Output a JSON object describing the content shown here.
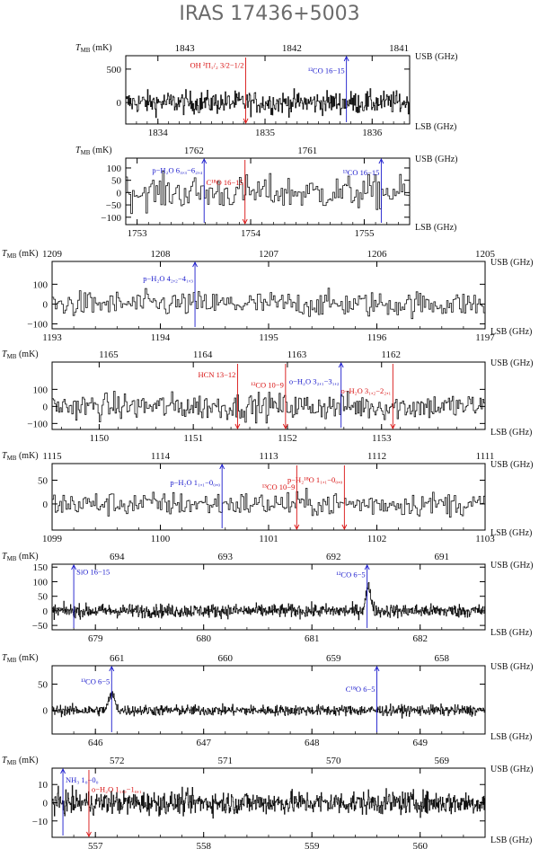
{
  "title": "IRAS 17436+5003",
  "colors": {
    "usb_line": "#1a1acc",
    "lsb_line": "#d81010",
    "spectrum": "#111111",
    "title": "#6b6b6b"
  },
  "axis_text": {
    "tmb": "T",
    "tmb_sub": "MB",
    "unit": "(mK)",
    "usb": "USB (GHz)",
    "lsb": "LSB (GHz)"
  },
  "chart_data": [
    {
      "type": "line",
      "xlabel_bottom": "LSB (GHz)",
      "xlabel_top": "USB (GHz)",
      "ylabel": "T_MB (mK)",
      "lsb_range": [
        1833.7,
        1836.35
      ],
      "usb_range": [
        1843.55,
        1840.9
      ],
      "ylim": [
        -320,
        700
      ],
      "lsb_ticks": [
        "1834",
        "1835",
        "1836"
      ],
      "usb_ticks": [
        "1843",
        "1842",
        "1841"
      ],
      "y_ticks": [
        "500",
        "0"
      ],
      "noise": 120,
      "n": 380,
      "features": [],
      "lines": [
        {
          "label": "OH ²Π₁/₂ 3/2−1/2",
          "x": 1834.82,
          "band": "lsb",
          "y_text": 520
        },
        {
          "label": "¹²CO 16−15",
          "x": 1835.76,
          "band": "usb",
          "y_text": 440
        }
      ]
    },
    {
      "type": "line",
      "lsb_range": [
        1752.9,
        1755.4
      ],
      "usb_range": [
        1762.6,
        1760.1
      ],
      "ylim": [
        -130,
        140
      ],
      "lsb_ticks": [
        "1753",
        "1754",
        "1755"
      ],
      "usb_ticks": [
        "1762",
        "1761"
      ],
      "y_ticks": [
        "100",
        "50",
        "0",
        "−50",
        "−100"
      ],
      "noise": 48,
      "n": 170,
      "features": [],
      "lines": [
        {
          "label": "p−H₂O 6₃,₃−6₂,₄",
          "x": 1753.59,
          "band": "usb",
          "y_text": 80
        },
        {
          "label": "C¹⁸O 16−15",
          "x": 1753.95,
          "band": "lsb",
          "y_text": 30
        },
        {
          "label": "¹³CO 16−15",
          "x": 1755.15,
          "band": "usb",
          "y_text": 70
        }
      ]
    },
    {
      "type": "line",
      "lsb_range": [
        1193,
        1197
      ],
      "usb_range": [
        1209,
        1205
      ],
      "ylim": [
        -125,
        215
      ],
      "lsb_ticks": [
        "1193",
        "1194",
        "1195",
        "1196",
        "1197"
      ],
      "usb_ticks": [
        "1209",
        "1208",
        "1207",
        "1206",
        "1205"
      ],
      "y_ticks": [
        "100",
        "0",
        "−100"
      ],
      "noise": 45,
      "n": 270,
      "features": [],
      "lines": [
        {
          "label": "p−H₂O 4₂,₂−4₁,₃",
          "x": 1194.32,
          "band": "usb",
          "y_text": 115
        }
      ]
    },
    {
      "type": "line",
      "lsb_range": [
        1149.5,
        1154.1
      ],
      "usb_range": [
        1165.6,
        1161
      ],
      "ylim": [
        -135,
        260
      ],
      "lsb_ticks": [
        "1150",
        "1151",
        "1152",
        "1153"
      ],
      "usb_ticks": [
        "1165",
        "1164",
        "1163",
        "1162"
      ],
      "y_ticks": [
        "100",
        "0",
        "−100"
      ],
      "noise": 55,
      "n": 330,
      "features": [],
      "lines": [
        {
          "label": "HCN 13−12",
          "x": 1151.47,
          "band": "lsb",
          "y_text": 170
        },
        {
          "label": "¹²CO 10−9",
          "x": 1151.98,
          "band": "lsb",
          "y_text": 110
        },
        {
          "label": "o−H₂O 3₂,₁−3₁,₂",
          "x": 1152.57,
          "band": "usb",
          "y_text": 130
        },
        {
          "label": "o−H₂O 3₁,₂−2₂,₁",
          "x": 1153.12,
          "band": "lsb",
          "y_text": 75
        }
      ]
    },
    {
      "type": "line",
      "lsb_range": [
        1099,
        1103
      ],
      "usb_range": [
        1115,
        1111
      ],
      "ylim": [
        -55,
        85
      ],
      "lsb_ticks": [
        "1099",
        "1100",
        "1101",
        "1102",
        "1103"
      ],
      "usb_ticks": [
        "1115",
        "1114",
        "1113",
        "1112",
        "1111"
      ],
      "y_ticks": [
        "50",
        "0"
      ],
      "noise": 18,
      "n": 280,
      "features": [],
      "lines": [
        {
          "label": "p−H₂O 1₁,₁−0₀,₀",
          "x": 1100.57,
          "band": "usb",
          "y_text": 40
        },
        {
          "label": "¹³CO 10−9",
          "x": 1101.26,
          "band": "lsb",
          "y_text": 30
        },
        {
          "label": "p−H₂¹⁸O 1₁,₁−0₀,₀",
          "x": 1101.7,
          "band": "lsb",
          "y_text": 45
        }
      ]
    },
    {
      "type": "line",
      "lsb_range": [
        678.6,
        682.6
      ],
      "usb_range": [
        694.6,
        690.6
      ],
      "ylim": [
        -65,
        160
      ],
      "lsb_ticks": [
        "679",
        "680",
        "681",
        "682"
      ],
      "usb_ticks": [
        "694",
        "693",
        "692",
        "691"
      ],
      "y_ticks": [
        "150",
        "100",
        "50",
        "0",
        "−50"
      ],
      "noise": 16,
      "n": 900,
      "features": [
        {
          "x": 681.52,
          "height": 80,
          "width": 0.035
        }
      ],
      "lines": [
        {
          "label": "SiO 16−15",
          "x": 678.8,
          "band": "usb",
          "y_text": 125
        },
        {
          "label": "¹²CO 6−5",
          "x": 681.51,
          "band": "usb",
          "y_text": 115
        }
      ]
    },
    {
      "type": "line",
      "lsb_range": [
        645.6,
        649.6
      ],
      "usb_range": [
        661.6,
        657.6
      ],
      "ylim": [
        -45,
        85
      ],
      "lsb_ticks": [
        "646",
        "647",
        "648",
        "649"
      ],
      "usb_ticks": [
        "661",
        "660",
        "659",
        "658"
      ],
      "y_ticks": [
        "50",
        "0"
      ],
      "noise": 7,
      "n": 900,
      "features": [
        {
          "x": 646.15,
          "height": 30,
          "width": 0.04
        }
      ],
      "lines": [
        {
          "label": "¹³CO 6−5",
          "x": 646.15,
          "band": "usb",
          "y_text": 50
        },
        {
          "label": "C¹⁸O 6−5",
          "x": 648.6,
          "band": "usb",
          "y_text": 35
        }
      ]
    },
    {
      "type": "line",
      "lsb_range": [
        556.6,
        560.6
      ],
      "usb_range": [
        572.6,
        568.6
      ],
      "ylim": [
        -19,
        19
      ],
      "lsb_ticks": [
        "557",
        "558",
        "559",
        "560"
      ],
      "usb_ticks": [
        "572",
        "571",
        "570",
        "569"
      ],
      "y_ticks": [
        "10",
        "0",
        "−10"
      ],
      "noise": 4.5,
      "n": 800,
      "features": [],
      "lines": [
        {
          "label": "NH₃ 1₀−0₀",
          "x": 556.7,
          "band": "usb",
          "y_text": 11
        },
        {
          "label": "o−H₂O 1₁,₀−1₀,₁",
          "x": 556.94,
          "band": "lsb",
          "y_text": 6
        }
      ]
    }
  ]
}
